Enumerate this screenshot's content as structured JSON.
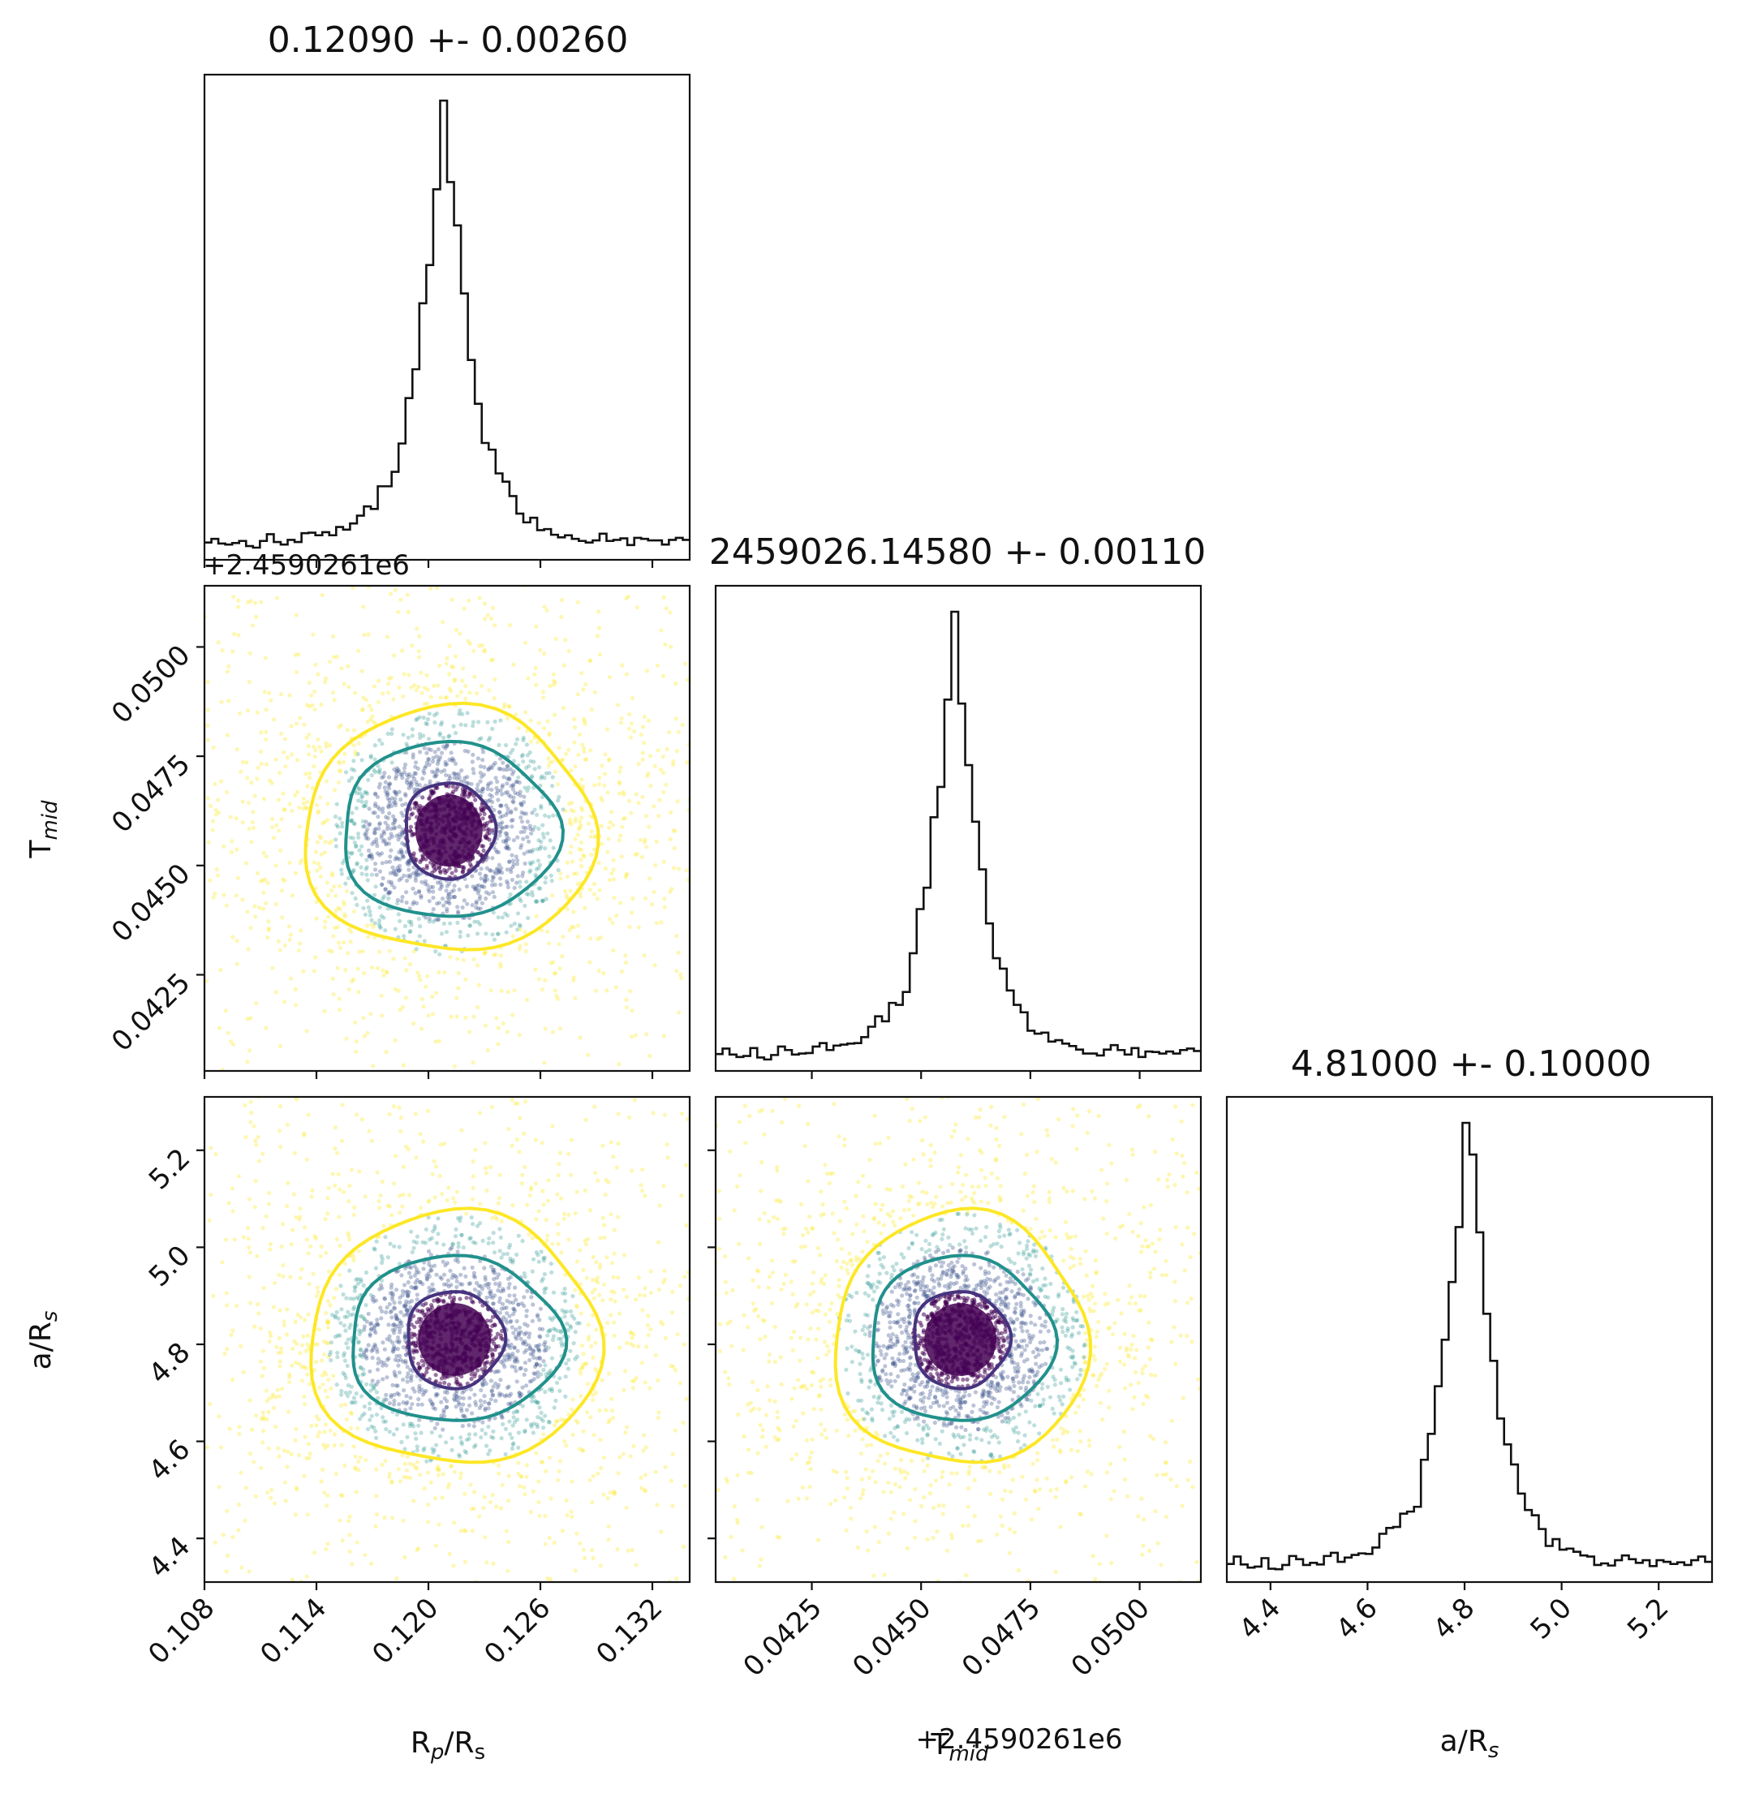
{
  "figure": {
    "titles": {
      "rp_rs": "0.12090 +- 0.00260",
      "tmid": "2459026.14580 +- 0.00110",
      "a_rs": "4.81000 +- 0.10000"
    },
    "offset_label": "+2.4590261e6",
    "axis_labels": {
      "rp_rs_x": "R_p/R_s",
      "tmid_x": "T_mid",
      "tmid_x_offset": "+2.4590261e6",
      "a_rs_x": "a/R_s",
      "tmid_y": "T_mid",
      "a_rs_y": "a/R_s"
    },
    "colors": {
      "hist": "#111111",
      "level_inner": "#46337e",
      "level_mid": "#21918c",
      "level_outer": "#fde725",
      "scatter_core": "#440154",
      "scatter_mid": "#3b528b",
      "scatter_teal": "#21918c",
      "scatter_outer": "#fde725"
    }
  },
  "chart_data": {
    "type": "corner",
    "parameters": [
      {
        "name": "R_p/R_s",
        "median": 0.1209,
        "sigma": 0.0026,
        "range": [
          0.108,
          0.134
        ],
        "ticks": [
          0.108,
          0.114,
          0.12,
          0.126,
          0.132
        ],
        "tick_labels": [
          "0.108",
          "0.114",
          "0.120",
          "0.126",
          "0.132"
        ],
        "title": "0.12090 +- 0.00260"
      },
      {
        "name": "T_mid",
        "offset": 2459026.1,
        "median": 0.0458,
        "sigma": 0.0011,
        "range": [
          0.0403,
          0.0514
        ],
        "ticks": [
          0.0425,
          0.045,
          0.0475,
          0.05
        ],
        "tick_labels": [
          "0.0425",
          "0.0450",
          "0.0475",
          "0.0500"
        ],
        "title": "2459026.14580 +- 0.00110"
      },
      {
        "name": "a/R_s",
        "median": 4.81,
        "sigma": 0.1,
        "range": [
          4.31,
          5.31
        ],
        "ticks": [
          4.4,
          4.6,
          4.8,
          5.0,
          5.2
        ],
        "tick_labels": [
          "4.4",
          "4.6",
          "4.8",
          "5.0",
          "5.2"
        ],
        "title": "4.81000 +- 0.10000"
      }
    ],
    "diagonal_histograms": [
      {
        "parameter": "R_p/R_s",
        "bins": 70,
        "shape": "sharp peak with broad tails",
        "peak_values": [
          0.1205,
          0.1215
        ]
      },
      {
        "parameter": "T_mid",
        "bins": 70,
        "shape": "sharp peak with broad tails",
        "peak_values": [
          0.0459
        ]
      },
      {
        "parameter": "a/R_s",
        "bins": 70,
        "shape": "sharp peak with broad tails",
        "peak_values": [
          4.82
        ]
      }
    ],
    "contours": [
      {
        "x": "R_p/R_s",
        "y": "T_mid",
        "center": [
          0.1211,
          0.0458
        ],
        "levels": [
          {
            "color": "#46337e",
            "rx": 0.0024,
            "ry": 0.0011
          },
          {
            "color": "#21918c",
            "rx": 0.0058,
            "ry": 0.002
          },
          {
            "color": "#fde725",
            "rx": 0.0078,
            "ry": 0.0028
          }
        ]
      },
      {
        "x": "R_p/R_s",
        "y": "a/R_s",
        "center": [
          0.1214,
          4.81
        ],
        "levels": [
          {
            "color": "#46337e",
            "rx": 0.0026,
            "ry": 0.1
          },
          {
            "color": "#21918c",
            "rx": 0.0057,
            "ry": 0.17
          },
          {
            "color": "#fde725",
            "rx": 0.0078,
            "ry": 0.26
          }
        ]
      },
      {
        "x": "T_mid",
        "y": "a/R_s",
        "center": [
          0.0459,
          4.81
        ],
        "levels": [
          {
            "color": "#46337e",
            "rx": 0.0011,
            "ry": 0.1
          },
          {
            "color": "#21918c",
            "rx": 0.0021,
            "ry": 0.17
          },
          {
            "color": "#fde725",
            "rx": 0.0029,
            "ry": 0.26
          }
        ]
      }
    ]
  }
}
